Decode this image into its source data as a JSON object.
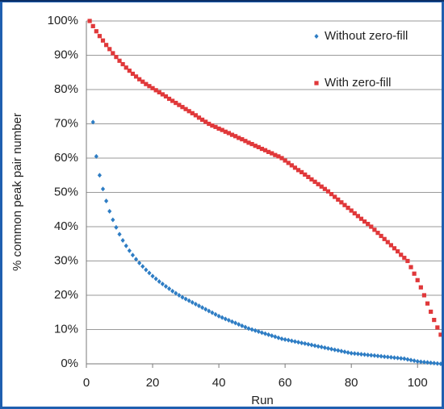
{
  "chart_data": {
    "type": "scatter",
    "x_label": "Run",
    "y_label": "% common peak pair number",
    "legend": "upper right",
    "grid": true,
    "xlim": [
      0,
      107.5
    ],
    "xticks": [
      0,
      20,
      40,
      60,
      80,
      100
    ],
    "ylim": [
      0,
      100
    ],
    "yticks": [
      {
        "value": 0,
        "label": "0%"
      },
      {
        "value": 10,
        "label": "10%"
      },
      {
        "value": 20,
        "label": "20%"
      },
      {
        "value": 30,
        "label": "30%"
      },
      {
        "value": 40,
        "label": "40%"
      },
      {
        "value": 50,
        "label": "50%"
      },
      {
        "value": 60,
        "label": "60%"
      },
      {
        "value": 70,
        "label": "70%"
      },
      {
        "value": 80,
        "label": "80%"
      },
      {
        "value": 90,
        "label": "90%"
      },
      {
        "value": 100,
        "label": "100%"
      }
    ],
    "x": [
      1,
      2,
      3,
      4,
      5,
      6,
      7,
      8,
      9,
      10,
      11,
      12,
      13,
      14,
      15,
      16,
      17,
      18,
      19,
      20,
      21,
      22,
      23,
      24,
      25,
      26,
      27,
      28,
      29,
      30,
      31,
      32,
      33,
      34,
      35,
      36,
      37,
      38,
      39,
      40,
      41,
      42,
      43,
      44,
      45,
      46,
      47,
      48,
      49,
      50,
      51,
      52,
      53,
      54,
      55,
      56,
      57,
      58,
      59,
      60,
      61,
      62,
      63,
      64,
      65,
      66,
      67,
      68,
      69,
      70,
      71,
      72,
      73,
      74,
      75,
      76,
      77,
      78,
      79,
      80,
      81,
      82,
      83,
      84,
      85,
      86,
      87,
      88,
      89,
      90,
      91,
      92,
      93,
      94,
      95,
      96,
      97,
      98,
      99,
      100,
      101,
      102,
      103,
      104,
      105,
      106,
      107
    ],
    "series": [
      {
        "name": "Without zero-fill",
        "color": "#2e7dc4",
        "marker": "diamond",
        "values": [
          null,
          70.5,
          60.5,
          55,
          51,
          47.5,
          44.5,
          42,
          39.8,
          37.8,
          36,
          34.4,
          33,
          31.7,
          30.5,
          29.4,
          28.4,
          27.4,
          26.5,
          25.6,
          24.8,
          24,
          23.3,
          22.6,
          21.9,
          21.2,
          20.6,
          20,
          19.4,
          18.9,
          18.4,
          17.9,
          17.4,
          16.9,
          16.4,
          15.9,
          15.4,
          14.9,
          14.4,
          13.9,
          13.5,
          13.1,
          12.7,
          12.3,
          11.9,
          11.5,
          11.1,
          10.7,
          10.3,
          10,
          9.7,
          9.4,
          9.1,
          8.8,
          8.5,
          8.2,
          7.9,
          7.6,
          7.3,
          7.1,
          6.9,
          6.7,
          6.5,
          6.3,
          6.1,
          5.9,
          5.7,
          5.5,
          5.3,
          5.1,
          4.9,
          4.7,
          4.5,
          4.3,
          4.1,
          3.9,
          3.7,
          3.5,
          3.3,
          3.1,
          3,
          2.9,
          2.8,
          2.7,
          2.6,
          2.5,
          2.4,
          2.3,
          2.2,
          2.1,
          2,
          1.9,
          1.8,
          1.7,
          1.6,
          1.5,
          1.3,
          1.1,
          0.9,
          0.7,
          0.6,
          0.5,
          0.4,
          0.3,
          0.2,
          0.1,
          0
        ]
      },
      {
        "name": "With zero-fill",
        "color": "#e0383a",
        "marker": "square",
        "values": [
          100,
          98.5,
          97,
          95.6,
          94.3,
          93,
          91.8,
          90.6,
          89.5,
          88.4,
          87.4,
          86.4,
          85.5,
          84.6,
          83.8,
          83,
          82.3,
          81.6,
          81,
          80.4,
          79.8,
          79.2,
          78.6,
          78,
          77.3,
          76.7,
          76.1,
          75.5,
          74.9,
          74.3,
          73.7,
          73.1,
          72.5,
          71.8,
          71.2,
          70.6,
          70,
          69.5,
          69.1,
          68.6,
          68.2,
          67.7,
          67.3,
          66.8,
          66.4,
          65.9,
          65.5,
          65,
          64.5,
          64.1,
          63.6,
          63.2,
          62.7,
          62.3,
          61.8,
          61.4,
          60.9,
          60.5,
          60,
          59.3,
          58.6,
          57.9,
          57.2,
          56.5,
          55.9,
          55.2,
          54.5,
          53.8,
          53.1,
          52.4,
          51.7,
          51,
          50.3,
          49.5,
          48.7,
          47.9,
          47.1,
          46.3,
          45.5,
          44.7,
          43.9,
          43.1,
          42.3,
          41.5,
          40.8,
          40,
          39.1,
          38.2,
          37.3,
          36.4,
          35.5,
          34.6,
          33.7,
          32.8,
          31.8,
          30.9,
          30,
          28.2,
          26.3,
          24.4,
          22.3,
          20,
          17.6,
          15.2,
          12.8,
          10.6,
          8.5
        ]
      }
    ]
  }
}
